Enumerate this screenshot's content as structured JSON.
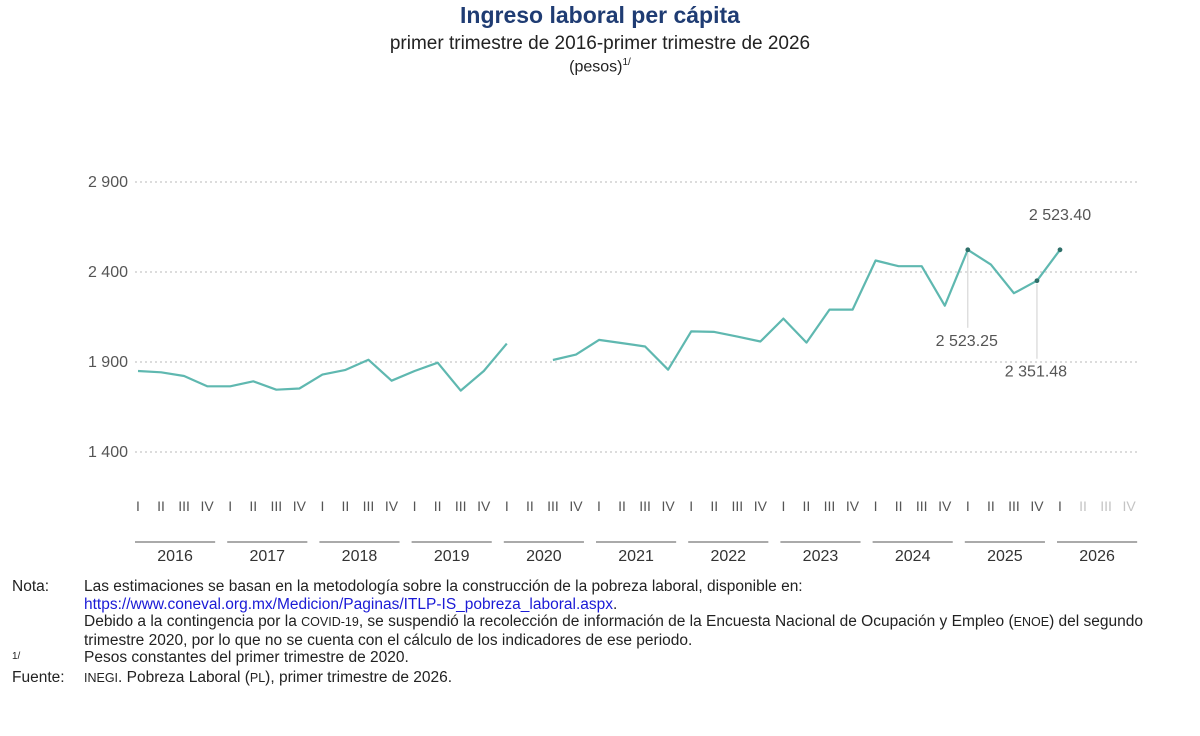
{
  "header": {
    "title": "Ingreso laboral per cápita",
    "subtitle": "primer trimestre de 2016-primer trimestre de 2026",
    "units": "(pesos)",
    "units_note_mark": "1/"
  },
  "colors": {
    "line": "#5fb8b0",
    "grid": "#c8c8c8",
    "axis_text": "#555555",
    "future_quarter": "#c4c4c4",
    "title": "#1f3c73",
    "link": "#1a1ad6"
  },
  "chart_data": {
    "type": "line",
    "title": "Ingreso laboral per cápita",
    "subtitle": "primer trimestre de 2016-primer trimestre de 2026",
    "ylabel": "(pesos)",
    "ylim": [
      1150,
      2950
    ],
    "yticks": [
      1400,
      1900,
      2400,
      2900
    ],
    "ytick_labels": [
      "1 400",
      "1 900",
      "2 400",
      "2 900"
    ],
    "grid": "horizontal dotted",
    "years": [
      "2016",
      "2017",
      "2018",
      "2019",
      "2020",
      "2021",
      "2022",
      "2023",
      "2024",
      "2025",
      "2026"
    ],
    "quarter_labels": [
      "I",
      "II",
      "III",
      "IV"
    ],
    "future_quarters": [
      "II",
      "III",
      "IV"
    ],
    "series": [
      {
        "values": [
          1850,
          1843,
          1822,
          1765,
          1765,
          1793,
          1746,
          1753,
          1830,
          1856,
          1912,
          1796,
          1850,
          1896,
          1741,
          1850,
          2002,
          null,
          1911,
          1941,
          2023,
          2005,
          1986,
          1857,
          2070,
          2067,
          2041,
          2014,
          2141,
          2008,
          2191,
          2191,
          2464,
          2432,
          2432,
          2213,
          2523.25,
          2441,
          2282,
          2351.48,
          2523.4
        ]
      }
    ],
    "annotations": [
      {
        "text": "2 523.40",
        "year": "2026",
        "quarter": "I",
        "value": 2523.4,
        "placement": "above"
      },
      {
        "text": "2 523.25",
        "year": "2025",
        "quarter": "I",
        "value": 2523.25,
        "placement": "below"
      },
      {
        "text": "2 351.48",
        "year": "2025",
        "quarter": "IV",
        "value": 2351.48,
        "placement": "below"
      }
    ]
  },
  "notes": {
    "nota_label": "Nota:",
    "nota_line1": "Las estimaciones se basan en la metodología sobre la construcción de la pobreza laboral, disponible en:",
    "nota_link": "https://www.coneval.org.mx/Medicion/Paginas/ITLP-IS_pobreza_laboral.aspx",
    "nota_link_end": ".",
    "covid_a": "Debido a la contingencia por la ",
    "covid_b": "COVID-19",
    "covid_c": ", se suspendió la recolección de información de la Encuesta Nacional de Ocupación y Empleo (",
    "covid_d": "ENOE",
    "covid_e": ") del segundo trimestre 2020, por lo que no se cuenta con el cálculo de los indicadores de ese periodo.",
    "footnote_mark": "1/",
    "footnote_text": "Pesos constantes del primer trimestre de 2020.",
    "fuente_label": "Fuente:",
    "fuente_a": "INEGI",
    "fuente_b": ". Pobreza Laboral (",
    "fuente_c": "PL",
    "fuente_d": "), primer trimestre de 2026."
  }
}
